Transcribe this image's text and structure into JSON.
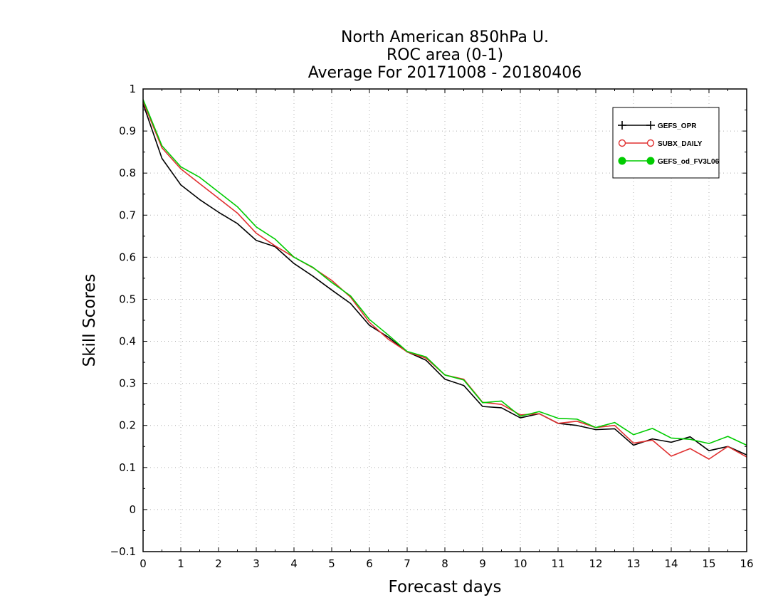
{
  "chart_data": {
    "type": "line",
    "title": [
      "North American 850hPa U.",
      "ROC area (0-1)",
      "Average For 20171008 - 20180406"
    ],
    "xlabel": "Forecast days",
    "ylabel": "Skill Scores",
    "xlim": [
      0,
      16
    ],
    "ylim": [
      -0.1,
      1
    ],
    "x_ticks": [
      "0",
      "1",
      "2",
      "3",
      "4",
      "5",
      "6",
      "7",
      "8",
      "9",
      "10",
      "11",
      "12",
      "13",
      "14",
      "15",
      "16"
    ],
    "y_ticks": [
      "−0.1",
      "0",
      "0.1",
      "0.2",
      "0.3",
      "0.4",
      "0.5",
      "0.6",
      "0.7",
      "0.8",
      "0.9",
      "1"
    ],
    "grid": true,
    "legend_position": "top-right",
    "x": [
      0,
      0.5,
      1,
      1.5,
      2,
      2.5,
      3,
      3.5,
      4,
      4.5,
      5,
      5.5,
      6,
      6.5,
      7,
      7.5,
      8,
      8.5,
      9,
      9.5,
      10,
      10.5,
      11,
      11.5,
      12,
      12.5,
      13,
      13.5,
      14,
      14.5,
      15,
      15.5,
      16
    ],
    "series": [
      {
        "name": "GEFS_OPR",
        "color": "#000000",
        "marker": "plus",
        "values": [
          0.965,
          0.835,
          0.772,
          0.737,
          0.707,
          0.68,
          0.64,
          0.625,
          0.585,
          0.555,
          0.522,
          0.49,
          0.438,
          0.41,
          0.375,
          0.355,
          0.31,
          0.295,
          0.245,
          0.242,
          0.218,
          0.228,
          0.205,
          0.2,
          0.19,
          0.192,
          0.153,
          0.168,
          0.16,
          0.173,
          0.14,
          0.15,
          0.13
        ]
      },
      {
        "name": "SUBX_DAILY",
        "color": "#e03030",
        "marker": "circle-open",
        "values": [
          0.97,
          0.86,
          0.81,
          0.775,
          0.74,
          0.705,
          0.657,
          0.627,
          0.6,
          0.575,
          0.545,
          0.505,
          0.445,
          0.405,
          0.375,
          0.36,
          0.32,
          0.31,
          0.255,
          0.25,
          0.225,
          0.228,
          0.205,
          0.21,
          0.195,
          0.2,
          0.158,
          0.165,
          0.127,
          0.145,
          0.12,
          0.15,
          0.125
        ]
      },
      {
        "name": "GEFS_od_FV3L06",
        "color": "#00cc00",
        "marker": "circle-filled",
        "values": [
          0.975,
          0.865,
          0.815,
          0.79,
          0.755,
          0.72,
          0.672,
          0.643,
          0.6,
          0.576,
          0.54,
          0.508,
          0.452,
          0.415,
          0.376,
          0.363,
          0.32,
          0.308,
          0.254,
          0.258,
          0.222,
          0.233,
          0.217,
          0.215,
          0.195,
          0.207,
          0.178,
          0.193,
          0.17,
          0.167,
          0.157,
          0.174,
          0.153
        ]
      }
    ]
  }
}
